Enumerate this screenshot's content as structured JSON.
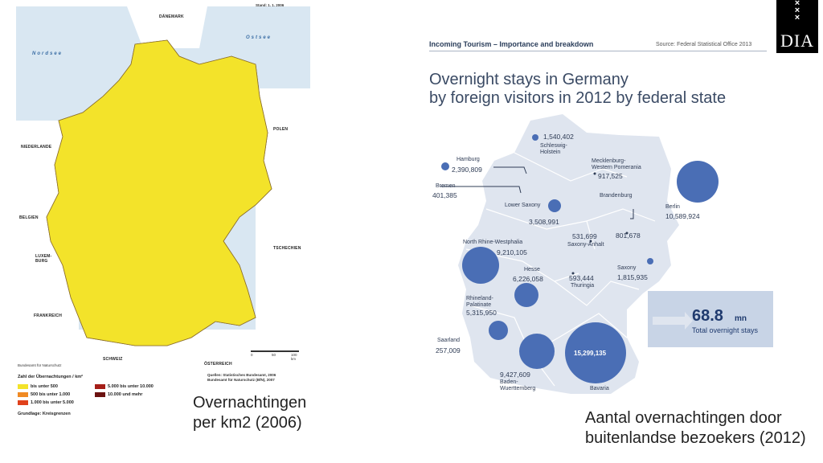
{
  "left_map": {
    "stand": "Stand: 1. 1. 2006",
    "countries": {
      "denmark": "DÄNEMARK",
      "poland": "POLEN",
      "netherlands": "NIEDERLANDE",
      "belgium": "BELGIEN",
      "luxembourg": "LUXEM-\nBURG",
      "france": "FRANKREICH",
      "czech": "TSCHECHIEN",
      "switzerland": "SCHWEIZ",
      "austria": "ÖSTERREICH"
    },
    "seas": {
      "north": "Nordsee",
      "baltic": "Ostsee"
    },
    "credit_left": "Bundesamt für Naturschutz",
    "credit_right_1": "Quellen: Statistisches Bundesamt, 2006",
    "credit_right_2": "Bundesamt für Naturschutz (BfN), 2007",
    "scale": {
      "zero": "0",
      "mid": "50",
      "end": "100 km"
    },
    "legend": {
      "title": "Zahl der Übernachtungen / km²",
      "items": [
        {
          "label": "bis unter 500",
          "color": "#f3e32a"
        },
        {
          "label": "500 bis unter 1.000",
          "color": "#f08a24"
        },
        {
          "label": "1.000 bis unter 5.000",
          "color": "#e0411c"
        },
        {
          "label": "5.000 bis unter 10.000",
          "color": "#a51e18"
        },
        {
          "label": "10.000 und mehr",
          "color": "#6b1210"
        }
      ],
      "basis": "Grundlage: Kreisgrenzen"
    }
  },
  "caption_left": {
    "line1": "Overnachtingen",
    "line2": "per km2 (2006)"
  },
  "right_panel": {
    "header": "Incoming Tourism – Importance and breakdown",
    "source": "Source: Federal Statistical Office 2013",
    "title_line1": "Overnight stays in Germany",
    "title_line2": "by foreign visitors in 2012 by federal state",
    "states": [
      {
        "name": "",
        "value": "1,540,402"
      },
      {
        "name": "Schleswig-\nHolstein",
        "value": ""
      },
      {
        "name": "Hamburg",
        "value": "2,390,809"
      },
      {
        "name": "Mecklenburg-\nWestern Pomerania",
        "value": "917,525"
      },
      {
        "name": "Bremen",
        "value": "401,385"
      },
      {
        "name": "Brandenburg",
        "value": ""
      },
      {
        "name": "Berlin",
        "value": "10,589,924"
      },
      {
        "name": "Lower Saxony",
        "value": "3,508,991"
      },
      {
        "name": "North Rhine-Westphalia",
        "value": "9,210,105"
      },
      {
        "name": "Saxony-Anhalt",
        "value": "531,699"
      },
      {
        "name": "",
        "value": "801,678"
      },
      {
        "name": "Hesse",
        "value": "6,226,058"
      },
      {
        "name": "Thuringia",
        "value": "593,444"
      },
      {
        "name": "Saxony",
        "value": "1,815,935"
      },
      {
        "name": "Rhineland-\nPalatinate",
        "value": "5,315,950"
      },
      {
        "name": "Saarland",
        "value": "257,009"
      },
      {
        "name": "Baden-\nWuerttemberg",
        "value": "9,427,609"
      },
      {
        "name": "Bavaria",
        "value": "15,299,135"
      }
    ],
    "total": {
      "number": "68.8",
      "unit": "mn",
      "label": "Total overnight stays"
    },
    "colors": {
      "bubble": "#4a6eb5",
      "map": "#dfe5ef",
      "box": "#c8d4e6"
    }
  },
  "caption_right": {
    "line1": "Aantal overnachtingen door",
    "line2": "buitenlandse bezoekers (2012)"
  },
  "logo": {
    "marks": "×\n×\n×",
    "text": "DIA"
  }
}
